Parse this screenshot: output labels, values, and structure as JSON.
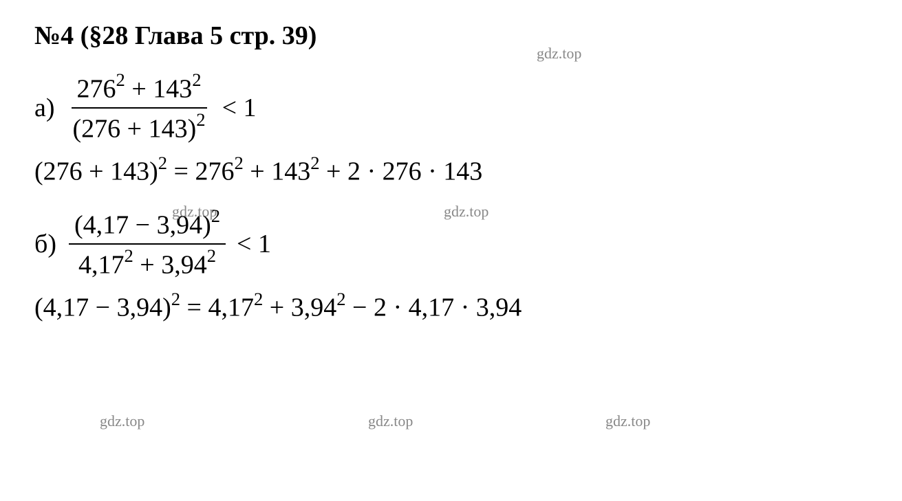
{
  "title": "№4 (§28 Глава 5  стр. 39)",
  "watermark": "gdz.top",
  "problemA": {
    "label": "а)",
    "numerator": "276",
    "numeratorExp1": "2",
    "numeratorPlus": " + 143",
    "numeratorExp2": "2",
    "denominator": "(276 + 143)",
    "denominatorExp": "2",
    "comparison": " < 1"
  },
  "equationA": {
    "left": "(276 + 143)",
    "leftExp": "2",
    "equals": " = 276",
    "exp1": "2",
    "plus1": " + 143",
    "exp2": "2",
    "plus2": " + 2 · 276 · 143"
  },
  "problemB": {
    "label": "б)",
    "numeratorBase": "(4,17 − 3,94)",
    "numeratorExp": "2",
    "denom1": "4,17",
    "denomExp1": "2",
    "denomPlus": " + 3,94",
    "denomExp2": "2",
    "comparison": " < 1"
  },
  "equationB": {
    "left": "(4,17 − 3,94)",
    "leftExp": "2",
    "equals": " = 4,17",
    "exp1": "2",
    "plus1": " + 3,94",
    "exp2": "2",
    "minus": " − 2 · 4,17 · 3,94"
  },
  "colors": {
    "text": "#000000",
    "watermark": "#888888",
    "background": "#ffffff"
  }
}
